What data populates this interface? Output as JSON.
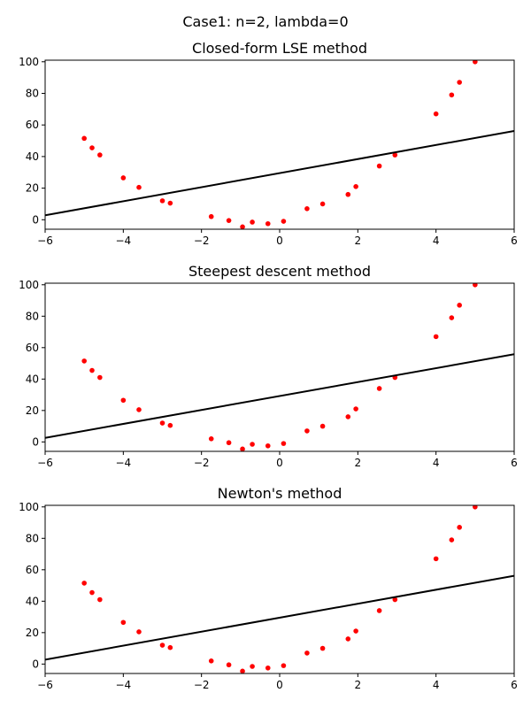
{
  "figure": {
    "suptitle": "Case1: n=2, lambda=0"
  },
  "chart_data": [
    {
      "type": "scatter",
      "title": "Closed-form LSE method",
      "xlim": [
        -6,
        6
      ],
      "ylim": [
        -6,
        101
      ],
      "x_ticks": [
        -6,
        -4,
        -2,
        0,
        2,
        4,
        6
      ],
      "y_ticks": [
        0,
        20,
        40,
        60,
        80,
        100
      ],
      "points": {
        "color": "#ff0000",
        "x": [
          -5.0,
          -4.8,
          -4.6,
          -4.0,
          -3.6,
          -3.0,
          -2.8,
          -1.75,
          -1.3,
          -0.95,
          -0.7,
          -0.3,
          0.1,
          0.7,
          1.1,
          1.75,
          1.95,
          2.55,
          2.95,
          4.0,
          4.4,
          4.6,
          5.0
        ],
        "y": [
          51.5,
          45.5,
          41,
          26.5,
          20.5,
          12,
          10.5,
          2,
          -0.5,
          -4.5,
          -1.5,
          -2.5,
          -1,
          7,
          10,
          16,
          21,
          34,
          41,
          67,
          79,
          87,
          100
        ]
      },
      "line": {
        "color": "#000000",
        "x": [
          -6,
          6
        ],
        "y": [
          2.8,
          56.2
        ]
      }
    },
    {
      "type": "scatter",
      "title": "Steepest descent method",
      "xlim": [
        -6,
        6
      ],
      "ylim": [
        -6,
        101
      ],
      "x_ticks": [
        -6,
        -4,
        -2,
        0,
        2,
        4,
        6
      ],
      "y_ticks": [
        0,
        20,
        40,
        60,
        80,
        100
      ],
      "points": {
        "color": "#ff0000",
        "x": [
          -5.0,
          -4.8,
          -4.6,
          -4.0,
          -3.6,
          -3.0,
          -2.8,
          -1.75,
          -1.3,
          -0.95,
          -0.7,
          -0.3,
          0.1,
          0.7,
          1.1,
          1.75,
          1.95,
          2.55,
          2.95,
          4.0,
          4.4,
          4.6,
          5.0
        ],
        "y": [
          51.5,
          45.5,
          41,
          26.5,
          20.5,
          12,
          10.5,
          2,
          -0.5,
          -4.5,
          -1.5,
          -2.5,
          -1,
          7,
          10,
          16,
          21,
          34,
          41,
          67,
          79,
          87,
          100
        ]
      },
      "line": {
        "color": "#000000",
        "x": [
          -6,
          6
        ],
        "y": [
          2.6,
          55.8
        ]
      }
    },
    {
      "type": "scatter",
      "title": "Newton's method",
      "xlim": [
        -6,
        6
      ],
      "ylim": [
        -6,
        101
      ],
      "x_ticks": [
        -6,
        -4,
        -2,
        0,
        2,
        4,
        6
      ],
      "y_ticks": [
        0,
        20,
        40,
        60,
        80,
        100
      ],
      "points": {
        "color": "#ff0000",
        "x": [
          -5.0,
          -4.8,
          -4.6,
          -4.0,
          -3.6,
          -3.0,
          -2.8,
          -1.75,
          -1.3,
          -0.95,
          -0.7,
          -0.3,
          0.1,
          0.7,
          1.1,
          1.75,
          1.95,
          2.55,
          2.95,
          4.0,
          4.4,
          4.6,
          5.0
        ],
        "y": [
          51.5,
          45.5,
          41,
          26.5,
          20.5,
          12,
          10.5,
          2,
          -0.5,
          -4.5,
          -1.5,
          -2.5,
          -1,
          7,
          10,
          16,
          21,
          34,
          41,
          67,
          79,
          87,
          100
        ]
      },
      "line": {
        "color": "#000000",
        "x": [
          -6,
          6
        ],
        "y": [
          2.8,
          56.2
        ]
      }
    }
  ]
}
